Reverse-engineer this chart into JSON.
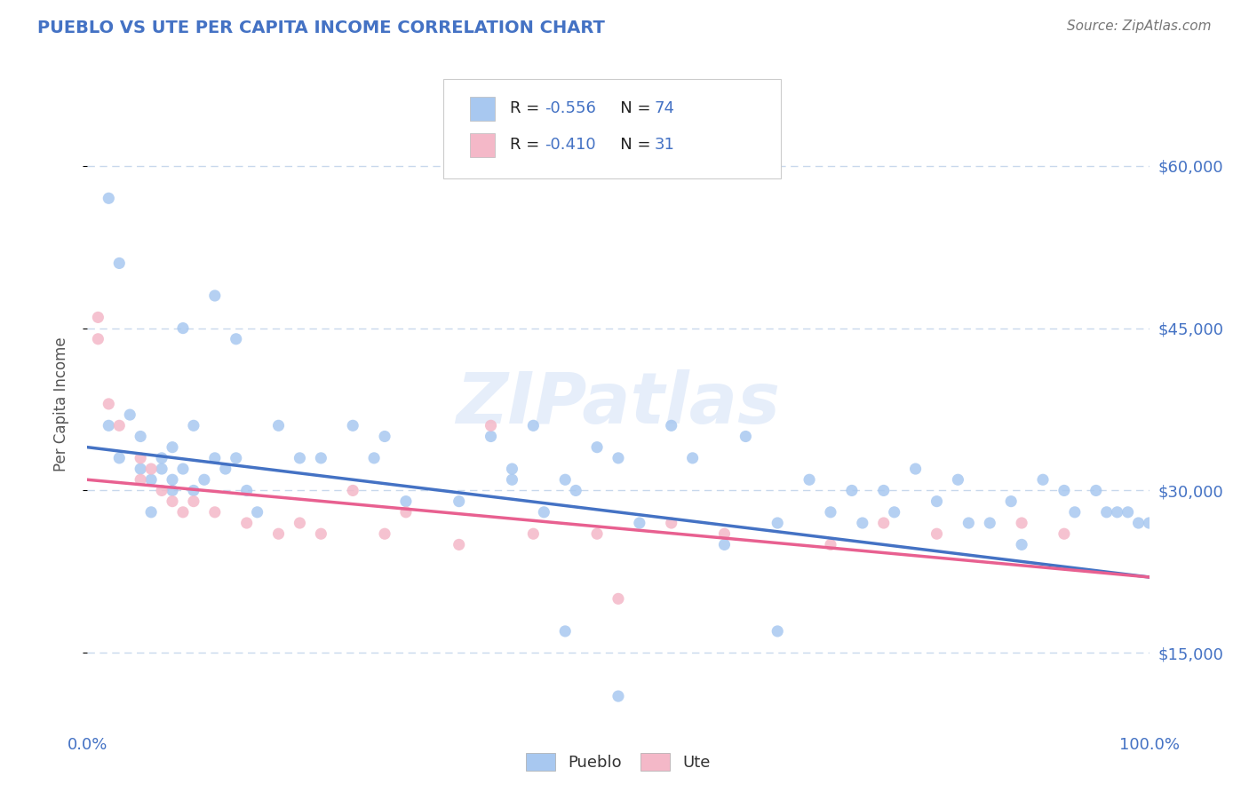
{
  "title": "PUEBLO VS UTE PER CAPITA INCOME CORRELATION CHART",
  "source": "Source: ZipAtlas.com",
  "ylabel": "Per Capita Income",
  "watermark": "ZIPatlas",
  "xlim": [
    0.0,
    1.0
  ],
  "ylim": [
    8000,
    68000
  ],
  "yticks": [
    15000,
    30000,
    45000,
    60000
  ],
  "ytick_labels": [
    "$15,000",
    "$30,000",
    "$45,000",
    "$60,000"
  ],
  "xticks": [
    0.0,
    0.25,
    0.5,
    0.75,
    1.0
  ],
  "xtick_labels": [
    "0.0%",
    "",
    "",
    "",
    "100.0%"
  ],
  "pueblo_R": -0.556,
  "pueblo_N": 74,
  "ute_R": -0.41,
  "ute_N": 31,
  "pueblo_color": "#a8c8f0",
  "ute_color": "#f4b8c8",
  "pueblo_line_color": "#4472c4",
  "ute_line_color": "#e86090",
  "title_color": "#4472c4",
  "axis_color": "#4472c4",
  "grid_color": "#c8d8ec",
  "background_color": "#ffffff",
  "pueblo_x": [
    0.02,
    0.09,
    0.12,
    0.14,
    0.02,
    0.03,
    0.04,
    0.05,
    0.05,
    0.06,
    0.06,
    0.07,
    0.07,
    0.08,
    0.08,
    0.08,
    0.09,
    0.1,
    0.1,
    0.11,
    0.12,
    0.13,
    0.14,
    0.15,
    0.16,
    0.18,
    0.2,
    0.22,
    0.25,
    0.27,
    0.28,
    0.3,
    0.35,
    0.38,
    0.4,
    0.42,
    0.45,
    0.48,
    0.5,
    0.52,
    0.55,
    0.57,
    0.4,
    0.43,
    0.46,
    0.6,
    0.62,
    0.65,
    0.68,
    0.7,
    0.72,
    0.73,
    0.75,
    0.76,
    0.78,
    0.8,
    0.82,
    0.83,
    0.85,
    0.87,
    0.88,
    0.9,
    0.92,
    0.93,
    0.95,
    0.96,
    0.97,
    0.98,
    0.99,
    1.0,
    0.5,
    0.45,
    0.65,
    0.03
  ],
  "pueblo_y": [
    57000,
    45000,
    48000,
    44000,
    36000,
    33000,
    37000,
    32000,
    35000,
    31000,
    28000,
    33000,
    32000,
    34000,
    31000,
    30000,
    32000,
    36000,
    30000,
    31000,
    33000,
    32000,
    33000,
    30000,
    28000,
    36000,
    33000,
    33000,
    36000,
    33000,
    35000,
    29000,
    29000,
    35000,
    32000,
    36000,
    31000,
    34000,
    33000,
    27000,
    36000,
    33000,
    31000,
    28000,
    30000,
    25000,
    35000,
    27000,
    31000,
    28000,
    30000,
    27000,
    30000,
    28000,
    32000,
    29000,
    31000,
    27000,
    27000,
    29000,
    25000,
    31000,
    30000,
    28000,
    30000,
    28000,
    28000,
    28000,
    27000,
    27000,
    11000,
    17000,
    17000,
    51000
  ],
  "ute_x": [
    0.01,
    0.01,
    0.02,
    0.03,
    0.05,
    0.05,
    0.06,
    0.07,
    0.08,
    0.09,
    0.1,
    0.12,
    0.15,
    0.18,
    0.2,
    0.22,
    0.25,
    0.28,
    0.3,
    0.35,
    0.38,
    0.42,
    0.48,
    0.5,
    0.55,
    0.6,
    0.7,
    0.75,
    0.8,
    0.88,
    0.92
  ],
  "ute_y": [
    46000,
    44000,
    38000,
    36000,
    33000,
    31000,
    32000,
    30000,
    29000,
    28000,
    29000,
    28000,
    27000,
    26000,
    27000,
    26000,
    30000,
    26000,
    28000,
    25000,
    36000,
    26000,
    26000,
    20000,
    27000,
    26000,
    25000,
    27000,
    26000,
    27000,
    26000
  ]
}
